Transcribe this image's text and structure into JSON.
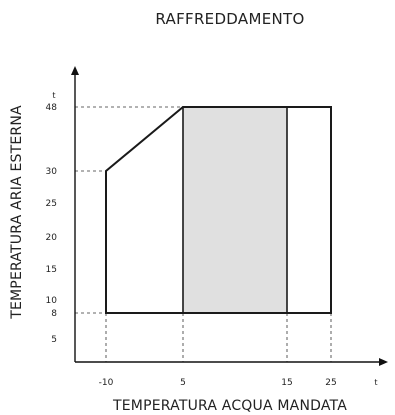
{
  "chart_data": {
    "type": "area",
    "title": "RAFFREDDAMENTO",
    "xlabel": "TEMPERATURA ACQUA MANDATA",
    "ylabel": "TEMPERATURA ARIA ESTERNA",
    "x_unit": "t",
    "y_unit": "t",
    "x_ticks": [
      {
        "label": "-10",
        "value": -10
      },
      {
        "label": "5",
        "value": 5
      },
      {
        "label": "15",
        "value": 15
      },
      {
        "label": "25",
        "value": 25
      }
    ],
    "y_ticks": [
      {
        "label": "5",
        "value": 5
      },
      {
        "label": "8",
        "value": 8
      },
      {
        "label": "10",
        "value": 10
      },
      {
        "label": "15",
        "value": 15
      },
      {
        "label": "20",
        "value": 20
      },
      {
        "label": "25",
        "value": 25
      },
      {
        "label": "30",
        "value": 30
      },
      {
        "label": "48",
        "value": 48
      }
    ],
    "operating_envelope": [
      {
        "x": -10,
        "y": 8
      },
      {
        "x": -10,
        "y": 30
      },
      {
        "x": 5,
        "y": 48
      },
      {
        "x": 25,
        "y": 48
      },
      {
        "x": 25,
        "y": 8
      }
    ],
    "shaded_region": {
      "x": [
        5,
        15
      ],
      "y": [
        8,
        48
      ]
    },
    "guide_lines": [
      {
        "axis": "y",
        "value": 48
      },
      {
        "axis": "y",
        "value": 30
      },
      {
        "axis": "y",
        "value": 8
      },
      {
        "axis": "x",
        "value": -10
      },
      {
        "axis": "x",
        "value": 5
      },
      {
        "axis": "x",
        "value": 15
      },
      {
        "axis": "x",
        "value": 25
      }
    ],
    "colors": {
      "shade": "#e0e0e0",
      "line": "#1a1a1a",
      "guide": "#333333"
    }
  }
}
